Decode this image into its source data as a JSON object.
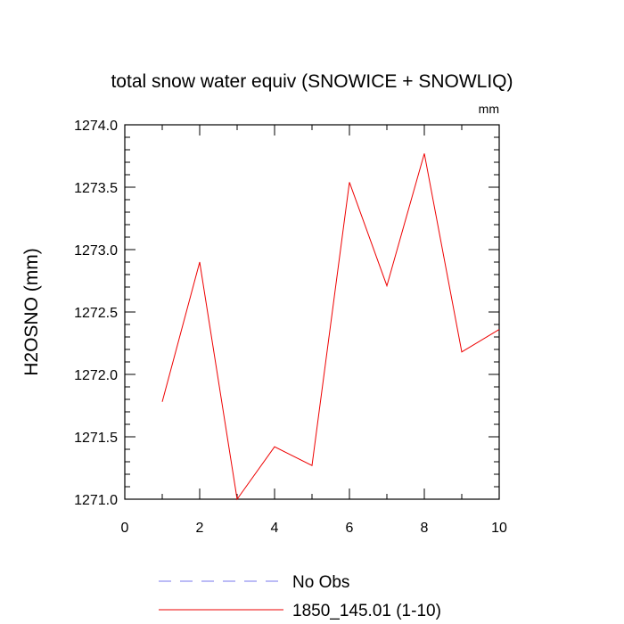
{
  "chart_data": {
    "type": "line",
    "title": "total snow water equiv (SNOWICE + SNOWLIQ)",
    "units": "mm",
    "xlabel": "",
    "ylabel": "H2OSNO  (mm)",
    "xlim": [
      0,
      10
    ],
    "ylim": [
      1271.0,
      1274.0
    ],
    "x_ticks": [
      0,
      2,
      4,
      6,
      8,
      10
    ],
    "x_tick_labels": [
      "0",
      "2",
      "4",
      "6",
      "8",
      "10"
    ],
    "y_ticks": [
      1271.0,
      1271.5,
      1272.0,
      1272.5,
      1273.0,
      1273.5,
      1274.0
    ],
    "y_tick_labels": [
      "1271.0",
      "1271.5",
      "1272.0",
      "1272.5",
      "1273.0",
      "1273.5",
      "1274.0"
    ],
    "grid": false,
    "legend_position": "bottom",
    "series": [
      {
        "name": "No Obs",
        "color": "#7777ee",
        "dash": "dashed",
        "x": [],
        "y": []
      },
      {
        "name": "1850_145.01 (1-10)",
        "color": "#ee0000",
        "dash": "solid",
        "x": [
          1,
          2,
          3,
          4,
          5,
          6,
          7,
          8,
          9,
          10
        ],
        "y": [
          1271.78,
          1272.9,
          1271.0,
          1271.42,
          1271.27,
          1273.54,
          1272.71,
          1273.77,
          1272.18,
          1272.36
        ]
      }
    ]
  }
}
